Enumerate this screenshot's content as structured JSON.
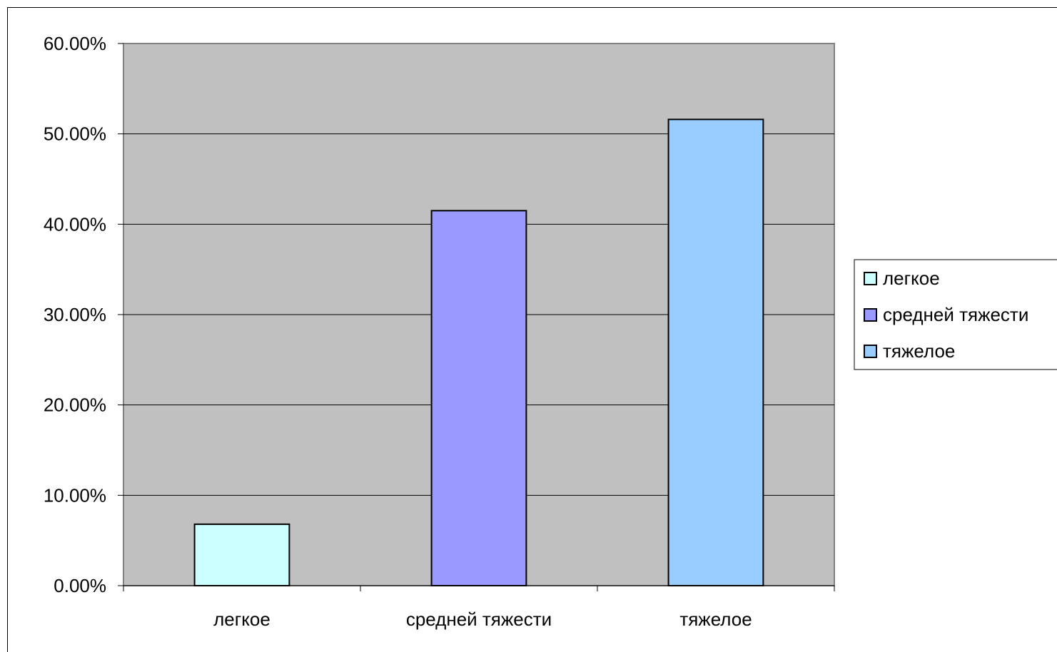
{
  "chart_data": {
    "type": "bar",
    "categories": [
      "легкое",
      "средней тяжести",
      "тяжелое"
    ],
    "values": [
      6.8,
      41.5,
      51.6
    ],
    "colors": [
      "#CCFFFF",
      "#9999FF",
      "#99CCFF"
    ],
    "ylim": [
      0,
      60
    ],
    "yticks": [
      0,
      10,
      20,
      30,
      40,
      50,
      60
    ],
    "ytick_labels": [
      "0.00%",
      "10.00%",
      "20.00%",
      "30.00%",
      "40.00%",
      "50.00%",
      "60.00%"
    ],
    "grid": true,
    "plot_background": "#C0C0C0",
    "legend_position": "right",
    "legend": [
      {
        "label": "легкое",
        "color": "#CCFFFF"
      },
      {
        "label": "средней тяжести",
        "color": "#9999FF"
      },
      {
        "label": "тяжелое",
        "color": "#99CCFF"
      }
    ]
  }
}
